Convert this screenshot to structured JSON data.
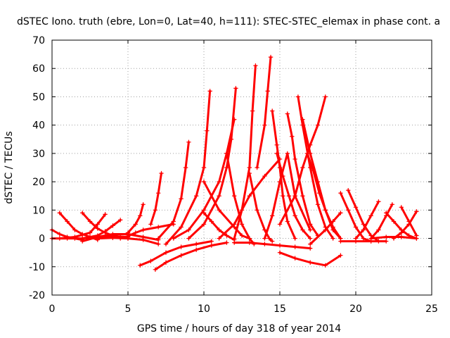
{
  "chart_data": {
    "type": "scatter",
    "title": "dSTEC Iono. truth (ebre, Lon=0, Lat=40, h=111): STEC-STEC_elemax in phase cont. a",
    "xlabel": "GPS time / hours of day 318 of year 2014",
    "ylabel": "dSTEC  / TECUs",
    "xlim": [
      0,
      25
    ],
    "ylim": [
      -20,
      70
    ],
    "xticks": [
      0,
      5,
      10,
      15,
      20,
      25
    ],
    "yticks": [
      -20,
      -10,
      0,
      10,
      20,
      30,
      40,
      50,
      60,
      70
    ],
    "grid": true,
    "marker": "plus",
    "color": "#ff0000",
    "series": [
      {
        "x": [
          0.0,
          0.5,
          1.0,
          1.5,
          2.0
        ],
        "y": [
          3,
          1.5,
          0.5,
          0,
          -0.5
        ]
      },
      {
        "x": [
          0.0,
          1.0,
          2.0,
          3.0,
          4.0,
          5.0
        ],
        "y": [
          0,
          0,
          0,
          0.5,
          0.8,
          0.5
        ]
      },
      {
        "x": [
          0.5,
          1.0,
          1.5,
          2.0,
          2.5,
          3.0
        ],
        "y": [
          9,
          6,
          3,
          1.5,
          0.5,
          -0.5
        ]
      },
      {
        "x": [
          0.5,
          1.5,
          2.5,
          3.0,
          3.5
        ],
        "y": [
          0,
          0.5,
          2,
          5,
          8.5
        ]
      },
      {
        "x": [
          2.0,
          2.5,
          3.0,
          3.5,
          4.0,
          4.5,
          5.0
        ],
        "y": [
          9,
          6,
          3.5,
          2,
          1,
          0.5,
          0
        ]
      },
      {
        "x": [
          2.0,
          3.0,
          3.5,
          4.0,
          4.5
        ],
        "y": [
          0,
          1,
          2.5,
          4.5,
          6.5
        ]
      },
      {
        "x": [
          2.0,
          3.0,
          4.0,
          5.0,
          6.0,
          7.0
        ],
        "y": [
          -1,
          0.5,
          1.5,
          1.5,
          0.5,
          -0.5
        ]
      },
      {
        "x": [
          3.0,
          4.0,
          5.0,
          6.0,
          7.0
        ],
        "y": [
          0,
          0.2,
          0,
          -0.5,
          -2
        ]
      },
      {
        "x": [
          4.5,
          5.0,
          5.5,
          6.0,
          7.0,
          8.0
        ],
        "y": [
          0,
          0.8,
          2,
          3,
          4,
          5
        ]
      },
      {
        "x": [
          5.0,
          5.5,
          5.8,
          6.0
        ],
        "y": [
          2,
          5,
          8,
          12
        ]
      },
      {
        "x": [
          6.5,
          6.8,
          7.0,
          7.2
        ],
        "y": [
          5,
          10,
          16,
          23
        ]
      },
      {
        "x": [
          5.8,
          6.5,
          7.5,
          8.5,
          9.5,
          10.5
        ],
        "y": [
          -9.5,
          -8,
          -5,
          -3,
          -2,
          -1
        ]
      },
      {
        "x": [
          6.8,
          7.5,
          8.5,
          9.5,
          10.5,
          11.5
        ],
        "y": [
          -11,
          -8.5,
          -6,
          -4,
          -2.5,
          -1.5
        ]
      },
      {
        "x": [
          7.0,
          8.0,
          8.5,
          8.8,
          9.0
        ],
        "y": [
          0,
          6,
          14,
          25,
          34
        ]
      },
      {
        "x": [
          7.5,
          8.5,
          9.5,
          10.0,
          10.2,
          10.4
        ],
        "y": [
          -2,
          4,
          15,
          25,
          38,
          52
        ]
      },
      {
        "x": [
          8.0,
          9.0,
          10.0,
          11.0,
          11.5,
          12.0
        ],
        "y": [
          0,
          3,
          10,
          20,
          30,
          42
        ]
      },
      {
        "x": [
          9.0,
          10.0,
          11.0,
          11.5,
          11.8,
          12.1
        ],
        "y": [
          0,
          5,
          15,
          25,
          35,
          53
        ]
      },
      {
        "x": [
          10.0,
          10.5,
          11.0,
          11.5,
          12.0
        ],
        "y": [
          9,
          6,
          3,
          1,
          -0.5
        ]
      },
      {
        "x": [
          10.0,
          11.0,
          12.0,
          12.5,
          13.0
        ],
        "y": [
          20,
          10,
          4,
          1,
          0
        ]
      },
      {
        "x": [
          11.0,
          12.0,
          13.0,
          14.0,
          15.0
        ],
        "y": [
          0,
          5,
          15,
          22,
          28
        ]
      },
      {
        "x": [
          11.5,
          12.0,
          12.5,
          13.0,
          13.3
        ],
        "y": [
          30,
          15,
          5,
          0,
          -2
        ]
      },
      {
        "x": [
          12.0,
          12.5,
          13.0,
          13.2,
          13.4
        ],
        "y": [
          0,
          10,
          25,
          45,
          61
        ]
      },
      {
        "x": [
          13.0,
          13.5,
          14.0,
          14.3,
          14.5
        ],
        "y": [
          23,
          10,
          3,
          0,
          -1
        ]
      },
      {
        "x": [
          13.5,
          14.0,
          14.2,
          14.4
        ],
        "y": [
          25,
          40,
          52,
          64
        ]
      },
      {
        "x": [
          14.0,
          14.5,
          15.0,
          15.5,
          16.0,
          17.0
        ],
        "y": [
          0,
          8,
          20,
          30,
          15,
          3
        ]
      },
      {
        "x": [
          14.5,
          14.8,
          15.0,
          15.2,
          15.5,
          16.0
        ],
        "y": [
          45,
          33,
          25,
          15,
          6,
          0
        ]
      },
      {
        "x": [
          14.8,
          15.2,
          15.6,
          16.0,
          16.5,
          17.0
        ],
        "y": [
          30,
          22,
          15,
          8,
          3,
          0
        ]
      },
      {
        "x": [
          15.5,
          15.8,
          16.0,
          16.5,
          17.0,
          17.5
        ],
        "y": [
          44,
          36,
          28,
          15,
          5,
          1
        ]
      },
      {
        "x": [
          15.0,
          16.0,
          16.5,
          17.0,
          17.5,
          18.0
        ],
        "y": [
          5,
          15,
          25,
          33,
          40,
          50
        ]
      },
      {
        "x": [
          16.2,
          16.5,
          17.0,
          17.5,
          18.0,
          18.5
        ],
        "y": [
          50,
          40,
          25,
          12,
          4,
          0
        ]
      },
      {
        "x": [
          16.5,
          17.0,
          17.5,
          18.0,
          18.5,
          19.0
        ],
        "y": [
          42,
          30,
          20,
          10,
          3,
          0
        ]
      },
      {
        "x": [
          16.8,
          17.2,
          17.6,
          18.0,
          18.5,
          19.0
        ],
        "y": [
          30,
          24,
          16,
          10,
          4,
          0
        ]
      },
      {
        "x": [
          17.0,
          18.0,
          18.5,
          19.0
        ],
        "y": [
          -2,
          3,
          6,
          9
        ]
      },
      {
        "x": [
          15.0,
          16.0,
          17.0,
          18.0,
          19.0
        ],
        "y": [
          -5,
          -7,
          -8.5,
          -9.5,
          -6
        ]
      },
      {
        "x": [
          12.0,
          13.0,
          14.0,
          15.0,
          16.0,
          17.0
        ],
        "y": [
          -1.5,
          -1.5,
          -2,
          -2.5,
          -3,
          -3.5
        ]
      },
      {
        "x": [
          19.0,
          19.5,
          20.0,
          20.5,
          21.0
        ],
        "y": [
          16,
          10,
          4,
          0,
          -1
        ]
      },
      {
        "x": [
          19.5,
          20.0,
          20.5,
          21.0,
          21.5
        ],
        "y": [
          17,
          11,
          5,
          1,
          -1
        ]
      },
      {
        "x": [
          20.0,
          20.5,
          21.0,
          21.5
        ],
        "y": [
          0,
          3,
          8,
          13
        ]
      },
      {
        "x": [
          19.0,
          20.0,
          21.0,
          22.0
        ],
        "y": [
          -1,
          -1,
          -1,
          -1
        ]
      },
      {
        "x": [
          21.0,
          21.5,
          22.0,
          22.4
        ],
        "y": [
          0,
          3,
          8,
          12
        ]
      },
      {
        "x": [
          22.0,
          22.5,
          23.0,
          23.5,
          24.0
        ],
        "y": [
          9,
          6,
          3,
          1,
          0
        ]
      },
      {
        "x": [
          23.0,
          23.5,
          24.0
        ],
        "y": [
          11,
          6,
          1
        ]
      },
      {
        "x": [
          22.5,
          23.0,
          23.5,
          24.0
        ],
        "y": [
          0,
          2,
          5,
          9.5
        ]
      },
      {
        "x": [
          21.0,
          22.0,
          23.0,
          24.0
        ],
        "y": [
          0,
          0.5,
          0.5,
          0
        ]
      }
    ]
  }
}
